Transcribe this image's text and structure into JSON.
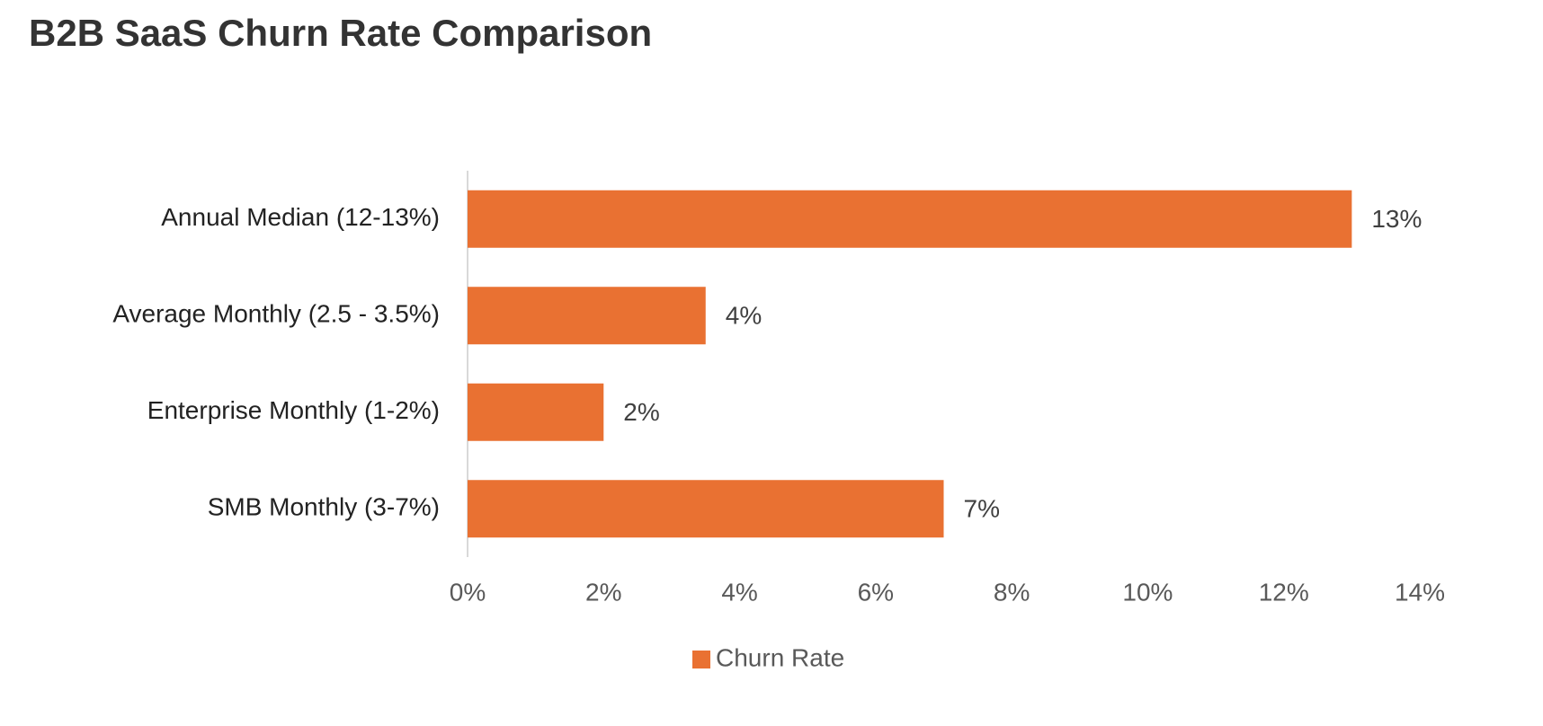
{
  "chart_data": {
    "type": "hbar",
    "title": "B2B SaaS Churn Rate Comparison",
    "categories": [
      "Annual Median (12-13%)",
      "Average Monthly (2.5 - 3.5%)",
      "Enterprise Monthly (1-2%)",
      "SMB Monthly (3-7%)"
    ],
    "series": [
      {
        "name": "Churn Rate",
        "color": "#e97132",
        "values": [
          13,
          3.5,
          2,
          7
        ],
        "value_labels": [
          "13%",
          "4%",
          "2%",
          "7%"
        ]
      }
    ],
    "xlim": [
      0,
      14
    ],
    "xticks": [
      {
        "value": 0,
        "label": "0%"
      },
      {
        "value": 2,
        "label": "2%"
      },
      {
        "value": 4,
        "label": "4%"
      },
      {
        "value": 6,
        "label": "6%"
      },
      {
        "value": 8,
        "label": "8%"
      },
      {
        "value": 10,
        "label": "10%"
      },
      {
        "value": 12,
        "label": "12%"
      },
      {
        "value": 14,
        "label": "14%"
      }
    ],
    "grid": false,
    "legend": "bottom"
  }
}
